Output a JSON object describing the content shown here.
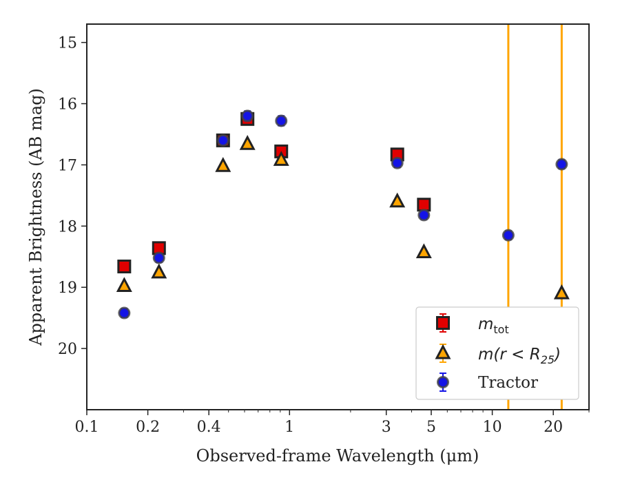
{
  "chart_data": {
    "type": "scatter",
    "title": "",
    "xlabel": "Observed-frame Wavelength (μm)",
    "ylabel": "Apparent Brightness (AB mag)",
    "xscale": "log",
    "xlim": [
      0.1,
      30
    ],
    "ylim": [
      21.0,
      14.7
    ],
    "y_inverted": true,
    "xticks": [
      {
        "value": 0.1,
        "label": "0.1"
      },
      {
        "value": 0.2,
        "label": "0.2"
      },
      {
        "value": 0.4,
        "label": "0.4"
      },
      {
        "value": 1,
        "label": "1"
      },
      {
        "value": 3,
        "label": "3"
      },
      {
        "value": 5,
        "label": "5"
      },
      {
        "value": 10,
        "label": "10"
      },
      {
        "value": 20,
        "label": "20"
      }
    ],
    "yticks": [
      {
        "value": 15,
        "label": "15"
      },
      {
        "value": 16,
        "label": "16"
      },
      {
        "value": 17,
        "label": "17"
      },
      {
        "value": 18,
        "label": "18"
      },
      {
        "value": 19,
        "label": "19"
      },
      {
        "value": 20,
        "label": "20"
      }
    ],
    "grid": false,
    "legend_position": "lower-right",
    "vertical_lines": {
      "x": [
        12.0,
        22.0
      ],
      "color": "#FFA500"
    },
    "series": [
      {
        "name": "m_tot",
        "legend_label": "m_tot",
        "marker": "square",
        "color": "#E00000",
        "x": [
          0.153,
          0.227,
          0.47,
          0.62,
          0.91,
          3.4,
          4.6
        ],
        "y": [
          18.66,
          18.36,
          16.6,
          16.25,
          16.78,
          16.83,
          17.65
        ],
        "err": [
          0.05,
          0.05,
          0.05,
          0.08,
          0.05,
          0.05,
          0.05
        ]
      },
      {
        "name": "m(r<R25)",
        "legend_label": "m(r < R25)",
        "marker": "triangle",
        "color": "#FFA500",
        "x": [
          0.153,
          0.227,
          0.47,
          0.62,
          0.91,
          3.4,
          4.6,
          22.0
        ],
        "y": [
          18.98,
          18.76,
          17.02,
          16.66,
          16.92,
          17.6,
          18.43,
          19.1
        ],
        "err": [
          0.02,
          0.02,
          0.02,
          0.02,
          0.02,
          0.02,
          0.02,
          0.02
        ]
      },
      {
        "name": "Tractor",
        "legend_label": "Tractor",
        "marker": "circle",
        "color": "#1414E6",
        "x": [
          0.153,
          0.227,
          0.47,
          0.62,
          0.91,
          3.4,
          4.6,
          12.0,
          22.0
        ],
        "y": [
          19.42,
          18.52,
          16.6,
          16.2,
          16.28,
          16.97,
          17.82,
          18.15,
          16.99
        ],
        "err": [
          0.07,
          0.07,
          0.05,
          0.08,
          0.08,
          0.07,
          0.07,
          0.07,
          0.07
        ]
      }
    ]
  }
}
